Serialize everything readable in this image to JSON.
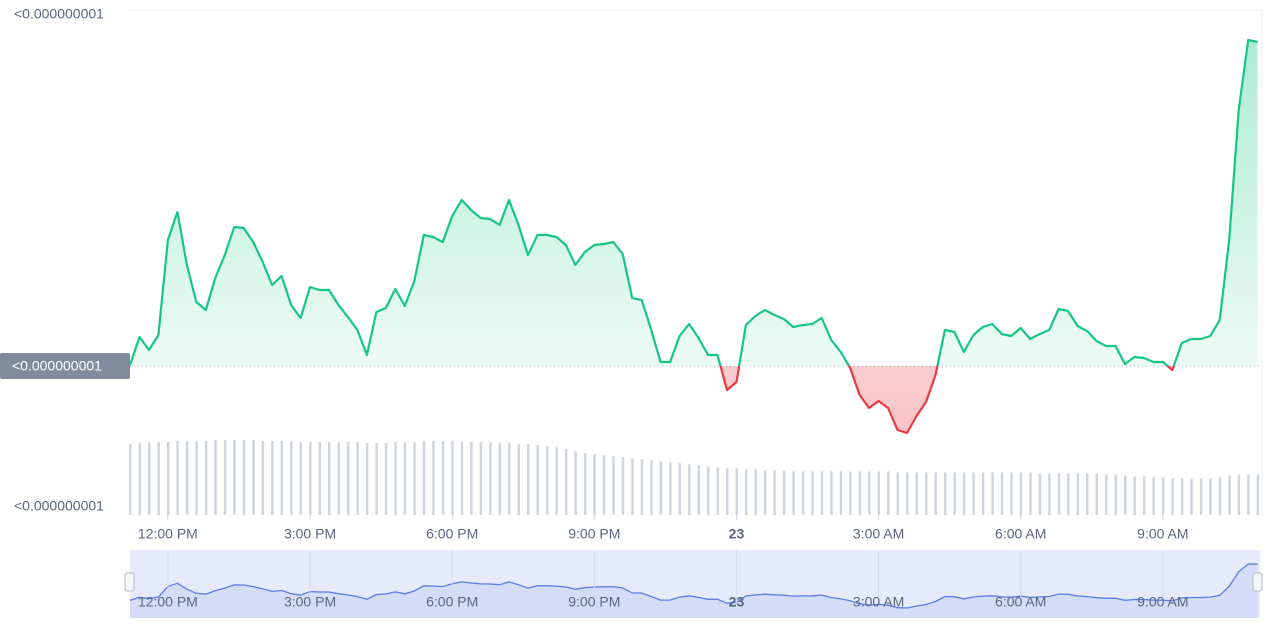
{
  "chart_data": {
    "type": "line",
    "x": [
      11.2,
      11.4,
      11.6,
      11.8,
      12.0,
      12.2,
      12.4,
      12.6,
      12.8,
      13.0,
      13.2,
      13.4,
      13.6,
      13.8,
      14.0,
      14.2,
      14.4,
      14.6,
      14.8,
      15.0,
      15.2,
      15.4,
      15.6,
      15.8,
      16.0,
      16.2,
      16.4,
      16.6,
      16.8,
      17.0,
      17.2,
      17.4,
      17.6,
      17.8,
      18.0,
      18.2,
      18.4,
      18.6,
      18.8,
      19.0,
      19.2,
      19.4,
      19.6,
      19.8,
      20.0,
      20.2,
      20.4,
      20.6,
      20.8,
      21.0,
      21.2,
      21.4,
      21.6,
      21.8,
      22.0,
      22.2,
      22.4,
      22.6,
      22.8,
      23.0,
      23.2,
      23.4,
      23.6,
      23.8,
      24.0,
      24.2,
      24.4,
      24.6,
      24.8,
      25.0,
      25.2,
      25.4,
      25.6,
      25.8,
      26.0,
      26.2,
      26.4,
      26.6,
      26.8,
      27.0,
      27.2,
      27.4,
      27.6,
      27.8,
      28.0,
      28.2,
      28.4,
      28.6,
      28.8,
      29.0,
      29.2,
      29.4,
      29.6,
      29.8,
      30.0,
      30.2,
      30.4,
      30.6,
      30.8,
      31.0,
      31.2,
      31.4,
      31.6,
      31.8,
      32.0,
      32.2,
      32.4,
      32.6,
      32.8,
      33.0,
      33.2,
      33.4,
      33.6,
      33.8,
      34.0,
      34.2,
      34.4,
      34.6,
      34.8,
      35.0
    ],
    "values": [
      6.5e-10,
      6.78e-10,
      6.65e-10,
      6.8e-10,
      7.75e-10,
      8.03e-10,
      7.5e-10,
      7.13e-10,
      7.05e-10,
      7.37e-10,
      7.6e-10,
      7.88e-10,
      7.87e-10,
      7.73e-10,
      7.53e-10,
      7.3e-10,
      7.39e-10,
      7.1e-10,
      6.97e-10,
      7.28e-10,
      7.25e-10,
      7.25e-10,
      7.1e-10,
      6.98e-10,
      6.85e-10,
      6.6e-10,
      7.03e-10,
      7.07e-10,
      7.26e-10,
      7.09e-10,
      7.34e-10,
      7.8e-10,
      7.78e-10,
      7.73e-10,
      7.99e-10,
      8.15e-10,
      8.05e-10,
      7.97e-10,
      7.96e-10,
      7.9e-10,
      8.15e-10,
      7.9e-10,
      7.6e-10,
      7.8e-10,
      7.8e-10,
      7.78e-10,
      7.7e-10,
      7.5e-10,
      7.63e-10,
      7.7e-10,
      7.71e-10,
      7.73e-10,
      7.61e-10,
      7.17e-10,
      7.15e-10,
      6.85e-10,
      6.53e-10,
      6.53e-10,
      6.79e-10,
      6.91e-10,
      6.77e-10,
      6.6e-10,
      6.6e-10,
      6.25e-10,
      6.33e-10,
      6.9e-10,
      6.99e-10,
      7.05e-10,
      7e-10,
      6.96e-10,
      6.88e-10,
      6.9e-10,
      6.91e-10,
      6.97e-10,
      6.75e-10,
      6.63e-10,
      6.47e-10,
      6.2e-10,
      6.07e-10,
      6.14e-10,
      6.07e-10,
      5.85e-10,
      5.82e-10,
      5.99e-10,
      6.13e-10,
      6.4e-10,
      6.85e-10,
      6.83e-10,
      6.63e-10,
      6.8e-10,
      6.88e-10,
      6.91e-10,
      6.81e-10,
      6.79e-10,
      6.87e-10,
      6.76e-10,
      6.81e-10,
      6.85e-10,
      7.06e-10,
      7.04e-10,
      6.89e-10,
      6.84e-10,
      6.74e-10,
      6.69e-10,
      6.69e-10,
      6.51e-10,
      6.58e-10,
      6.57e-10,
      6.53e-10,
      6.53e-10,
      6.45e-10,
      6.72e-10,
      6.76e-10,
      6.76e-10,
      6.79e-10,
      6.95e-10,
      7.75e-10,
      9.05e-10,
      9.75e-10,
      9.73e-10
    ],
    "volume": [
      70,
      71,
      72,
      72,
      72,
      73,
      73,
      73,
      73,
      74,
      74,
      74,
      74,
      74,
      73,
      73,
      73,
      73,
      72,
      72,
      72,
      72,
      72,
      72,
      72,
      71,
      71,
      71,
      72,
      72,
      72,
      73,
      73,
      73,
      73,
      72,
      72,
      72,
      72,
      71,
      71,
      70,
      70,
      69,
      68,
      67,
      65,
      63,
      61,
      60,
      59,
      58,
      57,
      56,
      55,
      54,
      53,
      52,
      51,
      50,
      49,
      48,
      47,
      46,
      46,
      45,
      45,
      44,
      44,
      44,
      43,
      43,
      43,
      43,
      43,
      43,
      43,
      43,
      43,
      43,
      43,
      42,
      42,
      42,
      42,
      42,
      42,
      42,
      42,
      42,
      42,
      42,
      42,
      42,
      42,
      42,
      41,
      41,
      41,
      41,
      41,
      41,
      41,
      40,
      40,
      39,
      38,
      38,
      37,
      37,
      36,
      36,
      36,
      36,
      36,
      37,
      39,
      40,
      40,
      40
    ],
    "reference": {
      "value": 6.49e-10,
      "label": "<0.000000001"
    },
    "xlim": [
      11.2,
      35.05
    ],
    "ylim": [
      5.08e-10,
      1e-09
    ],
    "yticks": [
      {
        "value": 1e-09,
        "label": "<0.000000001"
      },
      {
        "value": 5.08e-10,
        "label": "<0.000000001"
      }
    ],
    "xticks": [
      {
        "value": 12,
        "label": "12:00 PM"
      },
      {
        "value": 15,
        "label": "3:00 PM"
      },
      {
        "value": 18,
        "label": "6:00 PM"
      },
      {
        "value": 21,
        "label": "9:00 PM"
      },
      {
        "value": 24,
        "label": "23"
      },
      {
        "value": 27,
        "label": "3:00 AM"
      },
      {
        "value": 30,
        "label": "6:00 AM"
      },
      {
        "value": 33,
        "label": "9:00 AM"
      }
    ],
    "colors": {
      "above": "#16c784",
      "below": "#ea3943",
      "volume": "#cfd5df",
      "navigator": "#5b7ce6"
    }
  }
}
